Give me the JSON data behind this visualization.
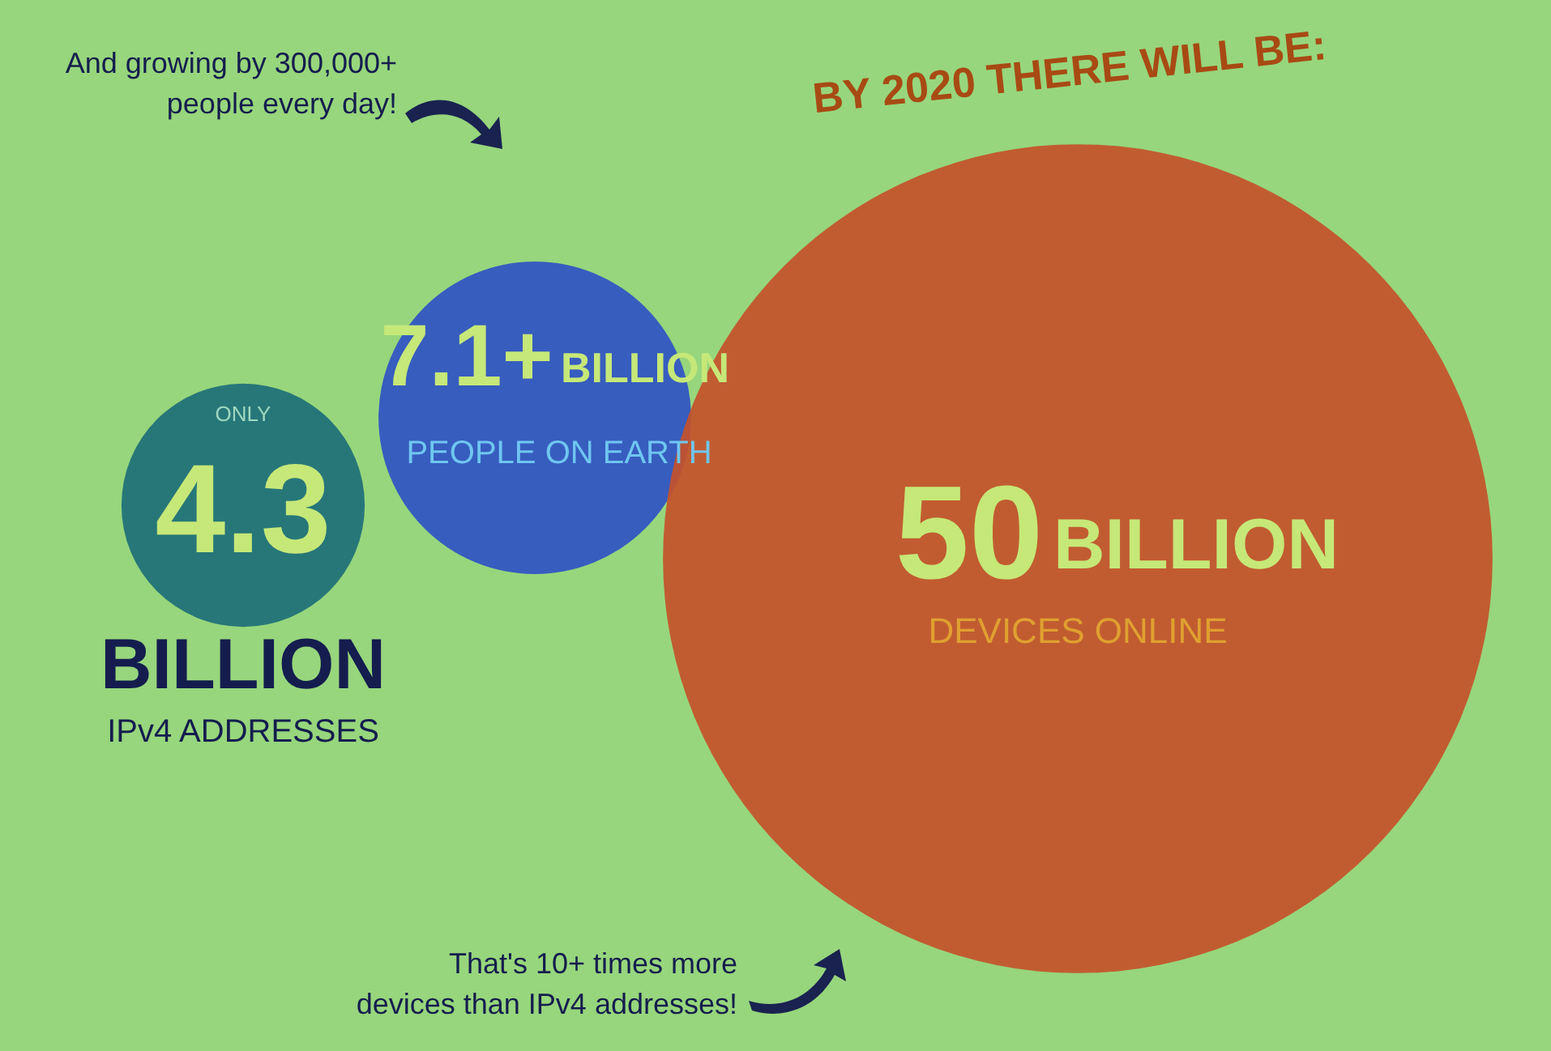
{
  "chart_data": {
    "type": "other",
    "title": "BY 2020 THERE WILL BE:",
    "categories": [
      "IPv4 ADDRESSES",
      "PEOPLE ON EARTH",
      "DEVICES ONLINE"
    ],
    "values": [
      4.3,
      7.1,
      50
    ],
    "colors": [
      "#1d6f78",
      "#2f52c4",
      "#c4512a"
    ],
    "value_labels": [
      "4.3",
      "7.1+",
      "50"
    ],
    "annotations": [
      {
        "text": "ONLY",
        "x": "IPv4 ADDRESSES"
      },
      {
        "text": "BILLION",
        "x": "IPv4 ADDRESSES"
      },
      {
        "text": "BILLION",
        "x": "PEOPLE ON EARTH"
      },
      {
        "text": "BILLION",
        "x": "DEVICES ONLINE"
      },
      "And growing by 300,000+ people every day!",
      "That's 10+ times more devices than IPv4 addresses!"
    ]
  }
}
